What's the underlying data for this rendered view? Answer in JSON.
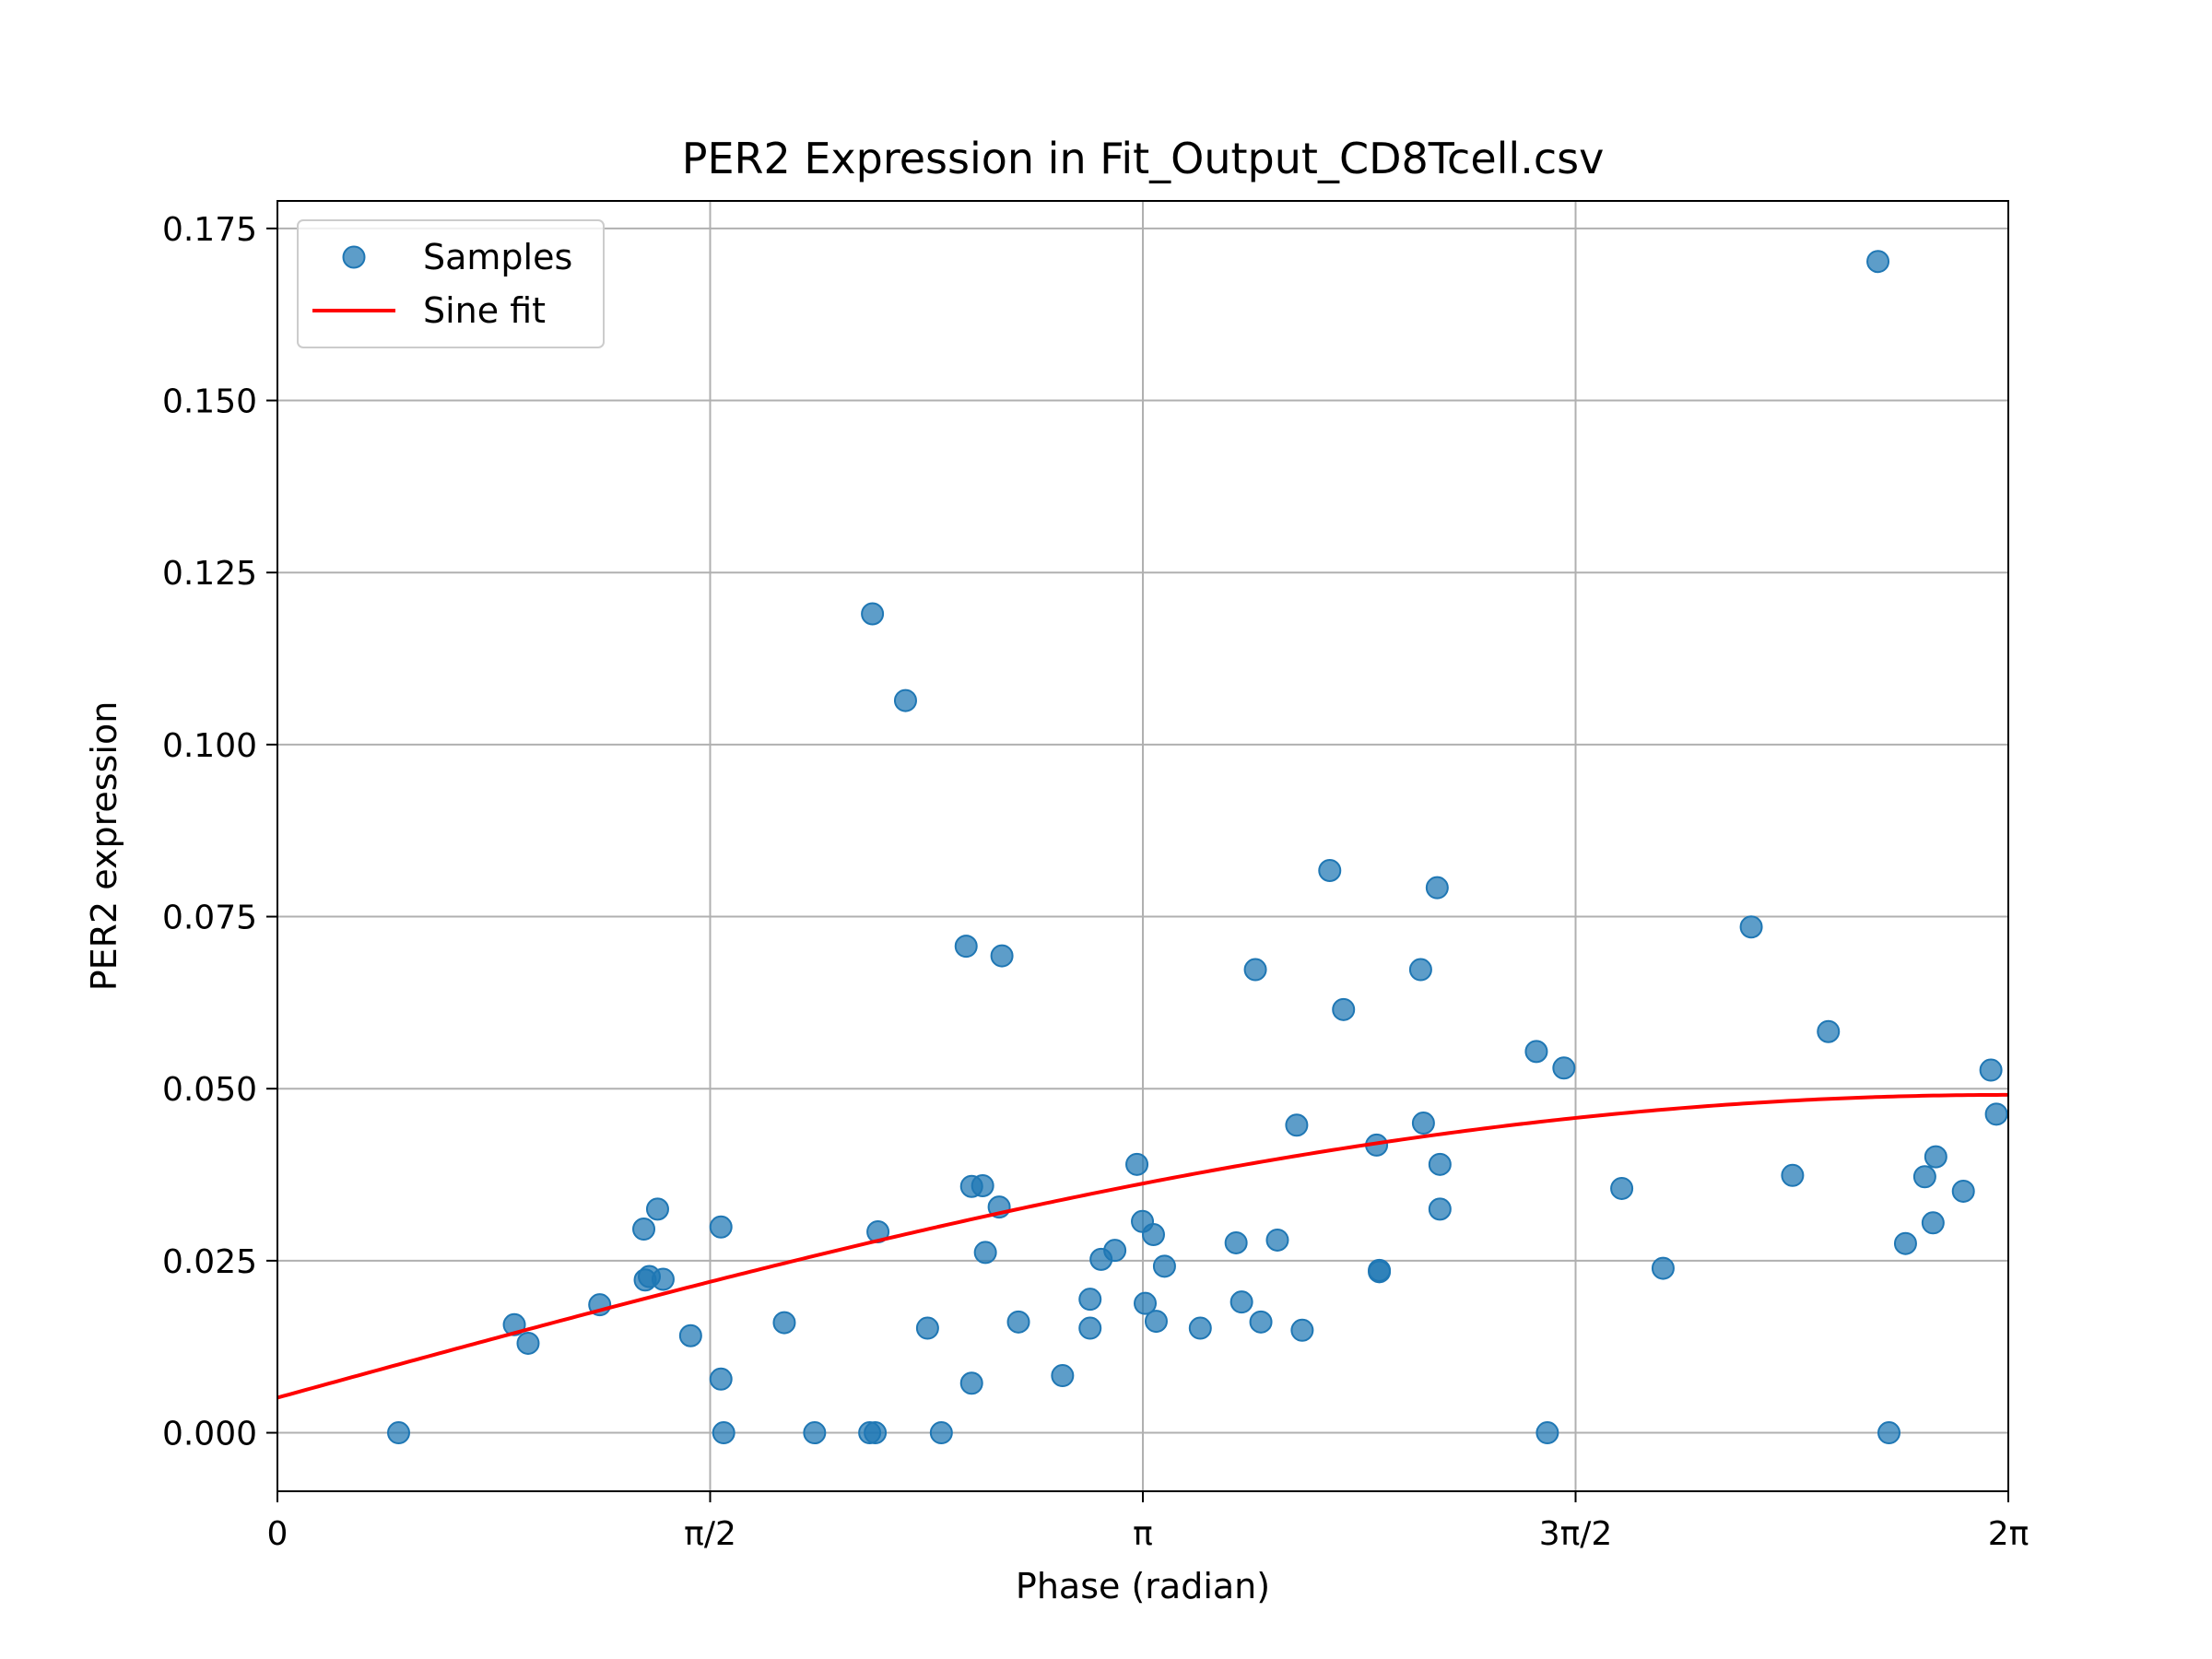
{
  "chart_data": {
    "type": "scatter",
    "title": "PER2 Expression in Fit_Output_CD8Tcell.csv",
    "xlabel": "Phase (radian)",
    "ylabel": "PER2 expression",
    "xlim": [
      0,
      6.2832
    ],
    "ylim": [
      -0.0085,
      0.179
    ],
    "grid": true,
    "legend_position": "top-left",
    "x_ticks": [
      {
        "value": 0,
        "label": "0"
      },
      {
        "value": 1.5708,
        "label": "π/2"
      },
      {
        "value": 3.1416,
        "label": "π"
      },
      {
        "value": 4.7124,
        "label": "3π/2"
      },
      {
        "value": 6.2832,
        "label": "2π"
      }
    ],
    "y_ticks": [
      {
        "value": 0.0,
        "label": "0.000"
      },
      {
        "value": 0.025,
        "label": "0.025"
      },
      {
        "value": 0.05,
        "label": "0.050"
      },
      {
        "value": 0.075,
        "label": "0.075"
      },
      {
        "value": 0.1,
        "label": "0.100"
      },
      {
        "value": 0.125,
        "label": "0.125"
      },
      {
        "value": 0.15,
        "label": "0.150"
      },
      {
        "value": 0.175,
        "label": "0.175"
      }
    ],
    "series": [
      {
        "name": "Samples",
        "kind": "scatter",
        "color": "#1f77b4",
        "points": [
          [
            0.44,
            0.0
          ],
          [
            0.86,
            0.0157
          ],
          [
            0.91,
            0.013
          ],
          [
            1.17,
            0.0186
          ],
          [
            1.33,
            0.0296
          ],
          [
            1.335,
            0.0222
          ],
          [
            1.35,
            0.0227
          ],
          [
            1.38,
            0.0325
          ],
          [
            1.4,
            0.0223
          ],
          [
            1.5,
            0.0141
          ],
          [
            1.61,
            0.0299
          ],
          [
            1.61,
            0.0078
          ],
          [
            1.62,
            0.0
          ],
          [
            1.84,
            0.016
          ],
          [
            1.95,
            0.0
          ],
          [
            2.16,
            0.119
          ],
          [
            2.15,
            0.0
          ],
          [
            2.17,
            0.0
          ],
          [
            2.18,
            0.0292
          ],
          [
            2.28,
            0.1064
          ],
          [
            2.36,
            0.0152
          ],
          [
            2.41,
            0.0
          ],
          [
            2.5,
            0.0707
          ],
          [
            2.52,
            0.0358
          ],
          [
            2.52,
            0.0072
          ],
          [
            2.56,
            0.0359
          ],
          [
            2.57,
            0.0262
          ],
          [
            2.62,
            0.0328
          ],
          [
            2.63,
            0.0693
          ],
          [
            2.69,
            0.0161
          ],
          [
            2.85,
            0.0083
          ],
          [
            2.95,
            0.0194
          ],
          [
            2.95,
            0.0152
          ],
          [
            2.99,
            0.0252
          ],
          [
            3.04,
            0.0265
          ],
          [
            3.12,
            0.039
          ],
          [
            3.14,
            0.0307
          ],
          [
            3.15,
            0.0188
          ],
          [
            3.18,
            0.0288
          ],
          [
            3.19,
            0.0162
          ],
          [
            3.22,
            0.0242
          ],
          [
            3.35,
            0.0152
          ],
          [
            3.48,
            0.0276
          ],
          [
            3.5,
            0.019
          ],
          [
            3.55,
            0.0673
          ],
          [
            3.57,
            0.0161
          ],
          [
            3.63,
            0.028
          ],
          [
            3.7,
            0.0447
          ],
          [
            3.72,
            0.0149
          ],
          [
            3.82,
            0.0817
          ],
          [
            3.87,
            0.0615
          ],
          [
            3.99,
            0.0418
          ],
          [
            4.0,
            0.0236
          ],
          [
            4.0,
            0.0234
          ],
          [
            4.15,
            0.0673
          ],
          [
            4.16,
            0.045
          ],
          [
            4.21,
            0.0792
          ],
          [
            4.22,
            0.039
          ],
          [
            4.22,
            0.0325
          ],
          [
            4.57,
            0.0554
          ],
          [
            4.61,
            0.0
          ],
          [
            4.67,
            0.053
          ],
          [
            4.88,
            0.0355
          ],
          [
            5.03,
            0.0239
          ],
          [
            5.35,
            0.0735
          ],
          [
            5.5,
            0.0374
          ],
          [
            5.63,
            0.0583
          ],
          [
            5.81,
            0.1702
          ],
          [
            5.85,
            0.0
          ],
          [
            5.91,
            0.0275
          ],
          [
            5.98,
            0.0372
          ],
          [
            6.01,
            0.0305
          ],
          [
            6.02,
            0.0401
          ],
          [
            6.12,
            0.0351
          ],
          [
            6.22,
            0.0527
          ],
          [
            6.24,
            0.0463
          ]
        ]
      },
      {
        "name": "Sine fit",
        "kind": "line",
        "color": "#ff0000",
        "model": {
          "offset": 0.0051,
          "amplitude": 0.044,
          "frequency": 0.25,
          "phase": 0.0
        }
      }
    ]
  }
}
